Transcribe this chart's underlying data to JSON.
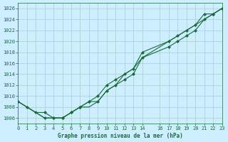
{
  "title": "Graphe pression niveau de la mer (hPa)",
  "bg_color": "#cceeff",
  "grid_color": "#aacccc",
  "line_color": "#1a6b3a",
  "marker_color": "#1a6b3a",
  "ylim": [
    1005,
    1027
  ],
  "xlim": [
    0,
    23
  ],
  "yticks": [
    1006,
    1008,
    1010,
    1012,
    1014,
    1016,
    1018,
    1020,
    1022,
    1024,
    1026
  ],
  "xticks": [
    0,
    1,
    2,
    3,
    4,
    5,
    6,
    7,
    8,
    9,
    10,
    11,
    12,
    13,
    14,
    16,
    17,
    18,
    19,
    20,
    21,
    22,
    23
  ],
  "series": [
    [
      1009,
      1008,
      1007,
      1006,
      1006,
      1006,
      1007,
      1008,
      1008,
      1009,
      1011,
      1012,
      1014,
      1015,
      1017,
      null,
      1020,
      1021,
      1022,
      1023,
      1024,
      1025,
      1026
    ],
    [
      1009,
      1008,
      1007,
      1007,
      1006,
      1006,
      1007,
      1008,
      1009,
      1010,
      1012,
      1013,
      1014,
      1015,
      1018,
      null,
      1020,
      1021,
      1022,
      1023,
      1025,
      1025,
      1026
    ],
    [
      1009,
      null,
      null,
      1006,
      1006,
      1006,
      1007,
      1008,
      1009,
      1009,
      1011,
      1012,
      1013,
      1014,
      1017,
      null,
      1019,
      1020,
      1021,
      1022,
      1024,
      1025,
      1026
    ]
  ],
  "x_values": [
    0,
    1,
    2,
    3,
    4,
    5,
    6,
    7,
    8,
    9,
    10,
    11,
    12,
    13,
    14,
    16,
    17,
    18,
    19,
    20,
    21,
    22,
    23
  ],
  "marker_series": [
    1,
    2
  ],
  "xlabel": "Graphe pression niveau de la mer (hPa)"
}
